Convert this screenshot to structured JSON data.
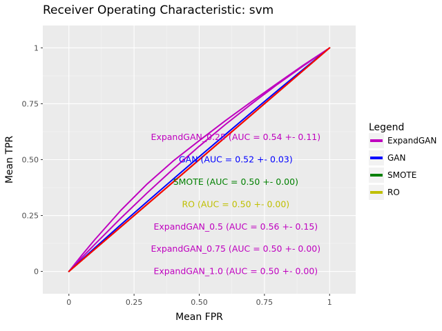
{
  "chart_data": {
    "type": "line",
    "title": "Receiver Operating Characteristic: svm",
    "xlabel": "Mean FPR",
    "ylabel": "Mean TPR",
    "xlim": [
      -0.1,
      1.1
    ],
    "ylim": [
      -0.1,
      1.1
    ],
    "xticks": [
      0,
      0.25,
      0.5,
      0.75,
      1
    ],
    "xtick_labels": [
      "0",
      "0.25",
      "0.50",
      "0.75",
      "1"
    ],
    "yticks": [
      0,
      0.25,
      0.5,
      0.75,
      1
    ],
    "ytick_labels": [
      "0",
      "0.25",
      "0.50",
      "0.75",
      "1"
    ],
    "grid": true,
    "legend": {
      "title": "Legend",
      "placement": "right",
      "entries": [
        {
          "label": "ExpandGAN",
          "color": "#bf00bf"
        },
        {
          "label": "GAN",
          "color": "#0000ff"
        },
        {
          "label": "SMOTE",
          "color": "#008000"
        },
        {
          "label": "RO",
          "color": "#bfbf00"
        }
      ]
    },
    "series": [
      {
        "color": "#bf00bf",
        "x": [
          0,
          0.05,
          0.1,
          0.2,
          0.3,
          0.4,
          0.5,
          0.6,
          0.7,
          0.8,
          0.9,
          1
        ],
        "y": [
          0,
          0.073,
          0.143,
          0.274,
          0.391,
          0.494,
          0.585,
          0.674,
          0.759,
          0.842,
          0.923,
          1
        ]
      },
      {
        "color": "#bf00bf",
        "x": [
          0,
          0.05,
          0.1,
          0.2,
          0.3,
          0.4,
          0.5,
          0.6,
          0.7,
          0.8,
          0.9,
          1
        ],
        "y": [
          0,
          0.062,
          0.122,
          0.239,
          0.351,
          0.458,
          0.56,
          0.657,
          0.749,
          0.837,
          0.92,
          1
        ]
      },
      {
        "color": "#bf00bf",
        "x": [
          0,
          1
        ],
        "y": [
          0,
          1
        ]
      },
      {
        "color": "#bf00bf",
        "x": [
          0,
          1
        ],
        "y": [
          0,
          1
        ]
      },
      {
        "color": "#0000ff",
        "x": [
          0,
          0.05,
          0.1,
          0.2,
          0.3,
          0.4,
          0.5,
          0.6,
          0.7,
          0.8,
          0.9,
          1
        ],
        "y": [
          0,
          0.053,
          0.106,
          0.21,
          0.312,
          0.413,
          0.513,
          0.612,
          0.711,
          0.809,
          0.905,
          1
        ]
      },
      {
        "color": "#008000",
        "x": [
          0,
          1
        ],
        "y": [
          0,
          1
        ]
      },
      {
        "color": "#bfbf00",
        "x": [
          0,
          1
        ],
        "y": [
          0,
          1
        ]
      },
      {
        "color": "#ff0000",
        "x": [
          0,
          1
        ],
        "y": [
          0,
          1
        ]
      }
    ],
    "annotations": [
      {
        "text": "ExpandGAN_0.25 (AUC = 0.54 +- 0.11)",
        "x": 0.64,
        "y": 0.6,
        "color": "#bf00bf"
      },
      {
        "text": "GAN (AUC = 0.52 +- 0.03)",
        "x": 0.64,
        "y": 0.5,
        "color": "#0000ff"
      },
      {
        "text": "SMOTE (AUC = 0.50 +- 0.00)",
        "x": 0.64,
        "y": 0.4,
        "color": "#008000"
      },
      {
        "text": "RO (AUC = 0.50 +- 0.00)",
        "x": 0.64,
        "y": 0.3,
        "color": "#bfbf00"
      },
      {
        "text": "ExpandGAN_0.5 (AUC = 0.56 +- 0.15)",
        "x": 0.64,
        "y": 0.2,
        "color": "#bf00bf"
      },
      {
        "text": "ExpandGAN_0.75 (AUC = 0.50 +- 0.00)",
        "x": 0.64,
        "y": 0.1,
        "color": "#bf00bf"
      },
      {
        "text": "ExpandGAN_1.0 (AUC = 0.50 +- 0.00)",
        "x": 0.64,
        "y": 0.0,
        "color": "#bf00bf"
      }
    ]
  }
}
